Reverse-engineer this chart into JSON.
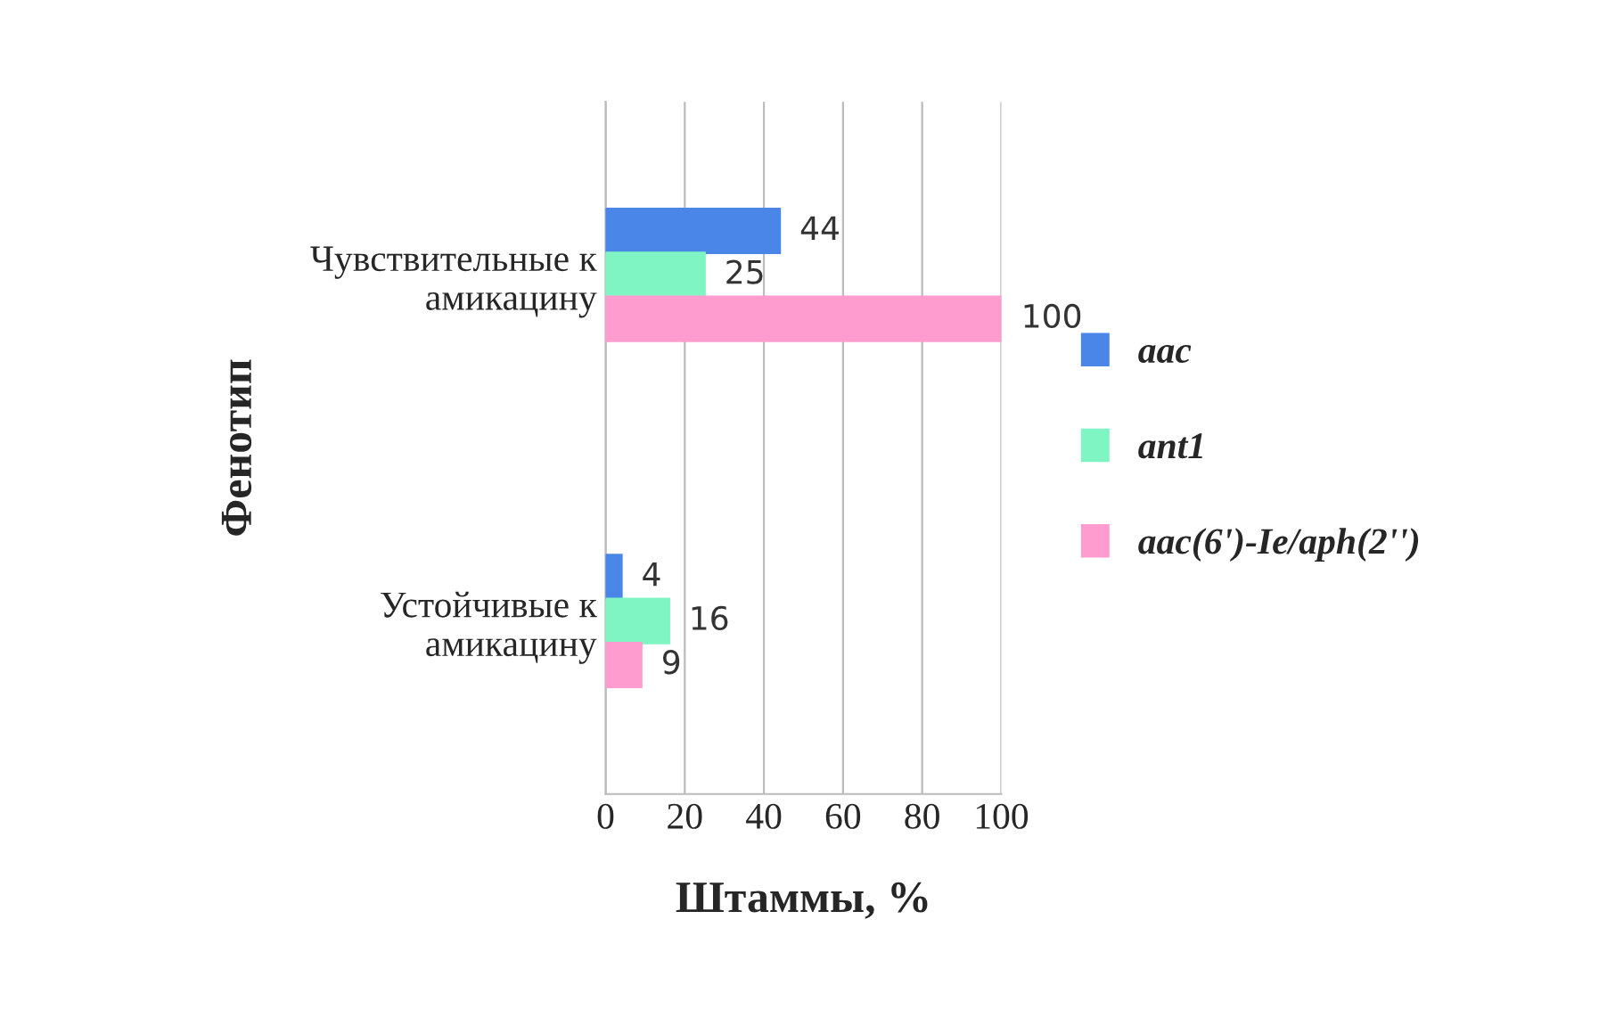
{
  "chart_data": {
    "type": "bar",
    "orientation": "horizontal",
    "categories": [
      "Чувствительные к\nамикацину",
      "Устойчивые к\nамикацину"
    ],
    "series": [
      {
        "name": "aac",
        "color": "#4a86e8",
        "values": [
          44,
          4
        ]
      },
      {
        "name": "ant1",
        "color": "#80f5c4",
        "values": [
          25,
          16
        ]
      },
      {
        "name": "aac(6')-Ie/aph(2'')",
        "color": "#ff9ccf",
        "values": [
          100,
          9
        ]
      }
    ],
    "xlim": [
      0,
      100
    ],
    "xticks": [
      0,
      20,
      40,
      60,
      80,
      100
    ],
    "xlabel": "Штаммы, %",
    "ylabel": "Фенотип",
    "grid": "x",
    "legend": "right",
    "data_labels": true
  }
}
